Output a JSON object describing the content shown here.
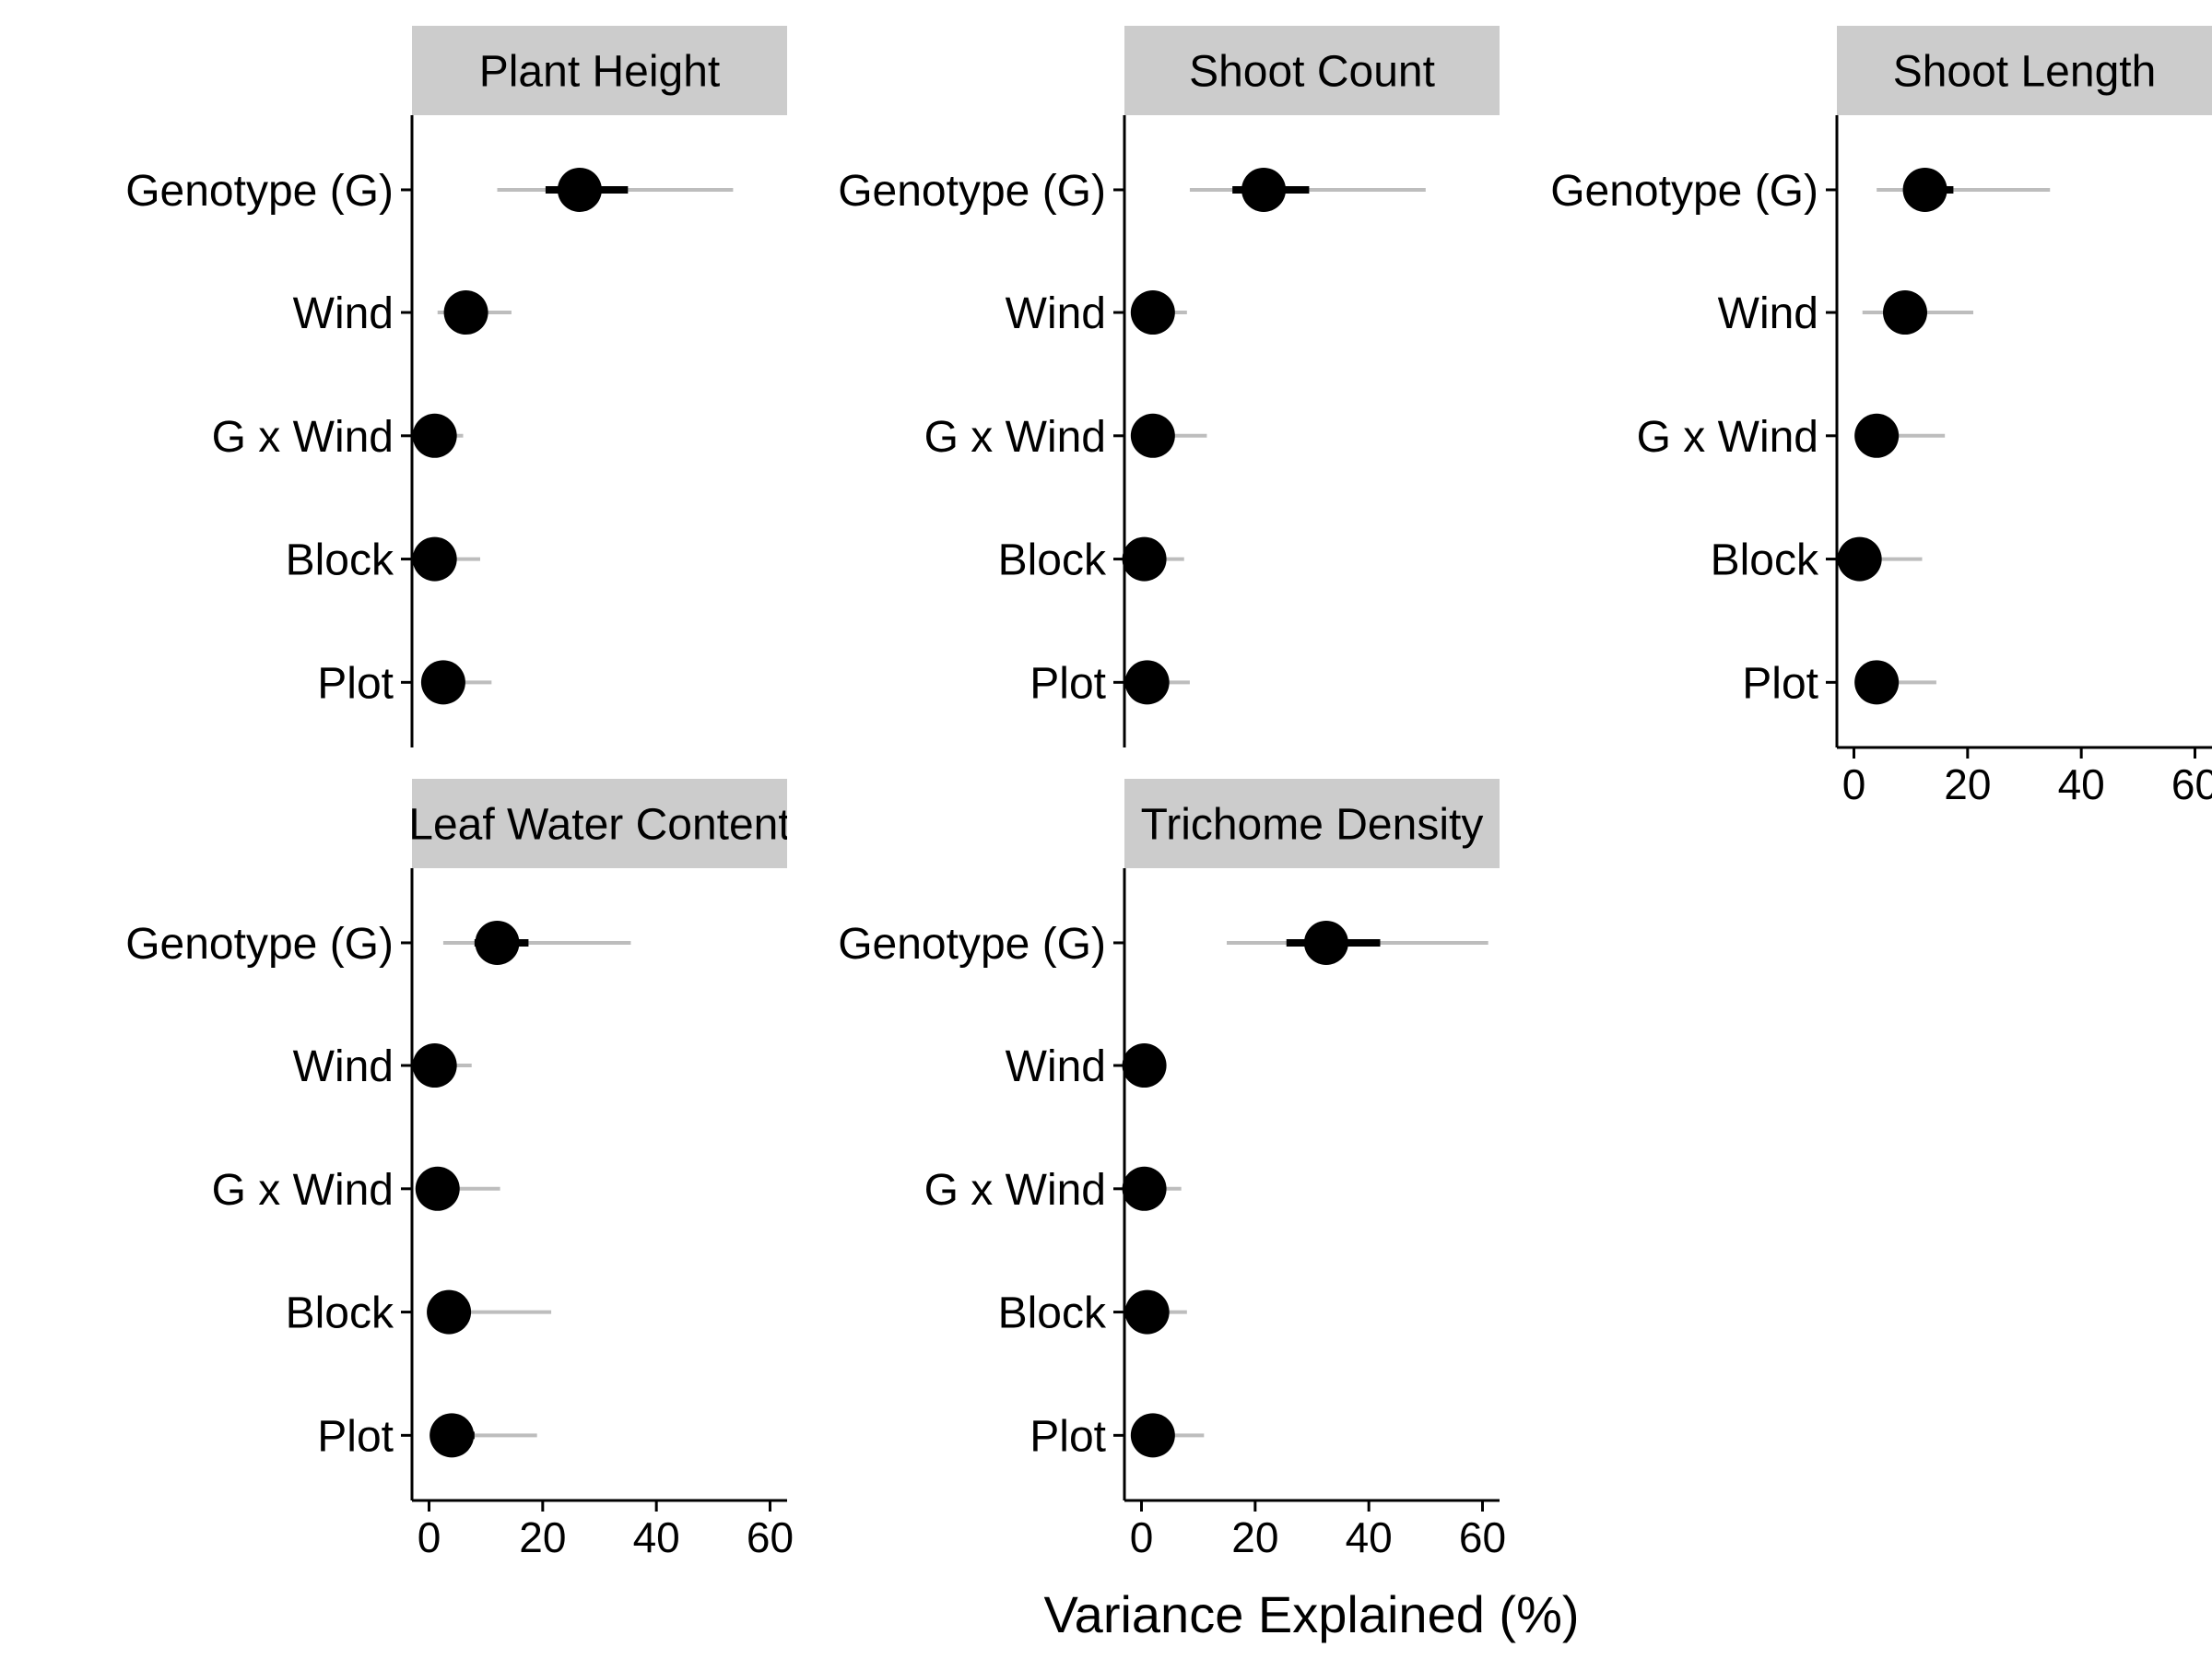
{
  "chart_data": {
    "type": "dot-interval",
    "xlabel": "Variance Explained (%)",
    "ylabel": "",
    "xlim": [
      -3,
      63
    ],
    "xticks": [
      0,
      20,
      40,
      60
    ],
    "categories": [
      "Genotype (G)",
      "Wind",
      "G x Wind",
      "Block",
      "Plot"
    ],
    "colors": {
      "point": "#000000",
      "inner_interval": "#000000",
      "outer_interval": "#bdbdbd",
      "strip_background": "#cccccc",
      "axis": "#000000"
    },
    "panels": [
      {
        "title": "Plant Height",
        "estimates": [
          {
            "category": "Genotype (G)",
            "value": 26.5,
            "inner": [
              20.5,
              35
            ],
            "outer": [
              12,
              53.5
            ]
          },
          {
            "category": "Wind",
            "value": 6.5,
            "inner": [
              5,
              8
            ],
            "outer": [
              1.5,
              14.5
            ]
          },
          {
            "category": "G x Wind",
            "value": 1,
            "inner": [
              0,
              2
            ],
            "outer": [
              0,
              6
            ]
          },
          {
            "category": "Block",
            "value": 1,
            "inner": [
              0,
              2
            ],
            "outer": [
              0,
              9
            ]
          },
          {
            "category": "Plot",
            "value": 2.5,
            "inner": [
              1.5,
              4
            ],
            "outer": [
              0.5,
              11
            ]
          }
        ]
      },
      {
        "title": "Shoot Count",
        "estimates": [
          {
            "category": "Genotype (G)",
            "value": 21.5,
            "inner": [
              16,
              29.5
            ],
            "outer": [
              8.5,
              50
            ]
          },
          {
            "category": "Wind",
            "value": 2,
            "inner": [
              1,
              3
            ],
            "outer": [
              0.5,
              8
            ]
          },
          {
            "category": "G x Wind",
            "value": 2,
            "inner": [
              1,
              3.5
            ],
            "outer": [
              0.5,
              11.5
            ]
          },
          {
            "category": "Block",
            "value": 0.5,
            "inner": [
              0,
              1.5
            ],
            "outer": [
              0,
              7.5
            ]
          },
          {
            "category": "Plot",
            "value": 1,
            "inner": [
              0.5,
              2
            ],
            "outer": [
              0,
              8.5
            ]
          }
        ]
      },
      {
        "title": "Shoot Length",
        "estimates": [
          {
            "category": "Genotype (G)",
            "value": 12.5,
            "inner": [
              9,
              17.5
            ],
            "outer": [
              4,
              34.5
            ]
          },
          {
            "category": "Wind",
            "value": 9,
            "inner": [
              7,
              11
            ],
            "outer": [
              1.5,
              21
            ]
          },
          {
            "category": "G x Wind",
            "value": 4,
            "inner": [
              2.5,
              6
            ],
            "outer": [
              0.5,
              16
            ]
          },
          {
            "category": "Block",
            "value": 1,
            "inner": [
              0,
              2
            ],
            "outer": [
              0,
              12
            ]
          },
          {
            "category": "Plot",
            "value": 4,
            "inner": [
              2.5,
              5.5
            ],
            "outer": [
              0.5,
              14.5
            ]
          }
        ]
      },
      {
        "title": "Leaf Water Content",
        "estimates": [
          {
            "category": "Genotype (G)",
            "value": 12,
            "inner": [
              8,
              17.5
            ],
            "outer": [
              2.5,
              35.5
            ]
          },
          {
            "category": "Wind",
            "value": 1,
            "inner": [
              0,
              2
            ],
            "outer": [
              0,
              7.5
            ]
          },
          {
            "category": "G x Wind",
            "value": 1.5,
            "inner": [
              0.5,
              3
            ],
            "outer": [
              0,
              12.5
            ]
          },
          {
            "category": "Block",
            "value": 3.5,
            "inner": [
              2,
              5
            ],
            "outer": [
              0.5,
              21.5
            ]
          },
          {
            "category": "Plot",
            "value": 4,
            "inner": [
              2.5,
              8
            ],
            "outer": [
              0.5,
              19
            ]
          }
        ]
      },
      {
        "title": "Trichome Density",
        "estimates": [
          {
            "category": "Genotype (G)",
            "value": 32.5,
            "inner": [
              25.5,
              42
            ],
            "outer": [
              15,
              61
            ]
          },
          {
            "category": "Wind",
            "value": 0.5,
            "inner": [
              0,
              1
            ],
            "outer": [
              0,
              3
            ]
          },
          {
            "category": "G x Wind",
            "value": 0.5,
            "inner": [
              0,
              1.5
            ],
            "outer": [
              0,
              7
            ]
          },
          {
            "category": "Block",
            "value": 1,
            "inner": [
              0,
              2
            ],
            "outer": [
              0,
              8
            ]
          },
          {
            "category": "Plot",
            "value": 2,
            "inner": [
              1,
              3.5
            ],
            "outer": [
              0.5,
              11
            ]
          }
        ]
      }
    ]
  }
}
